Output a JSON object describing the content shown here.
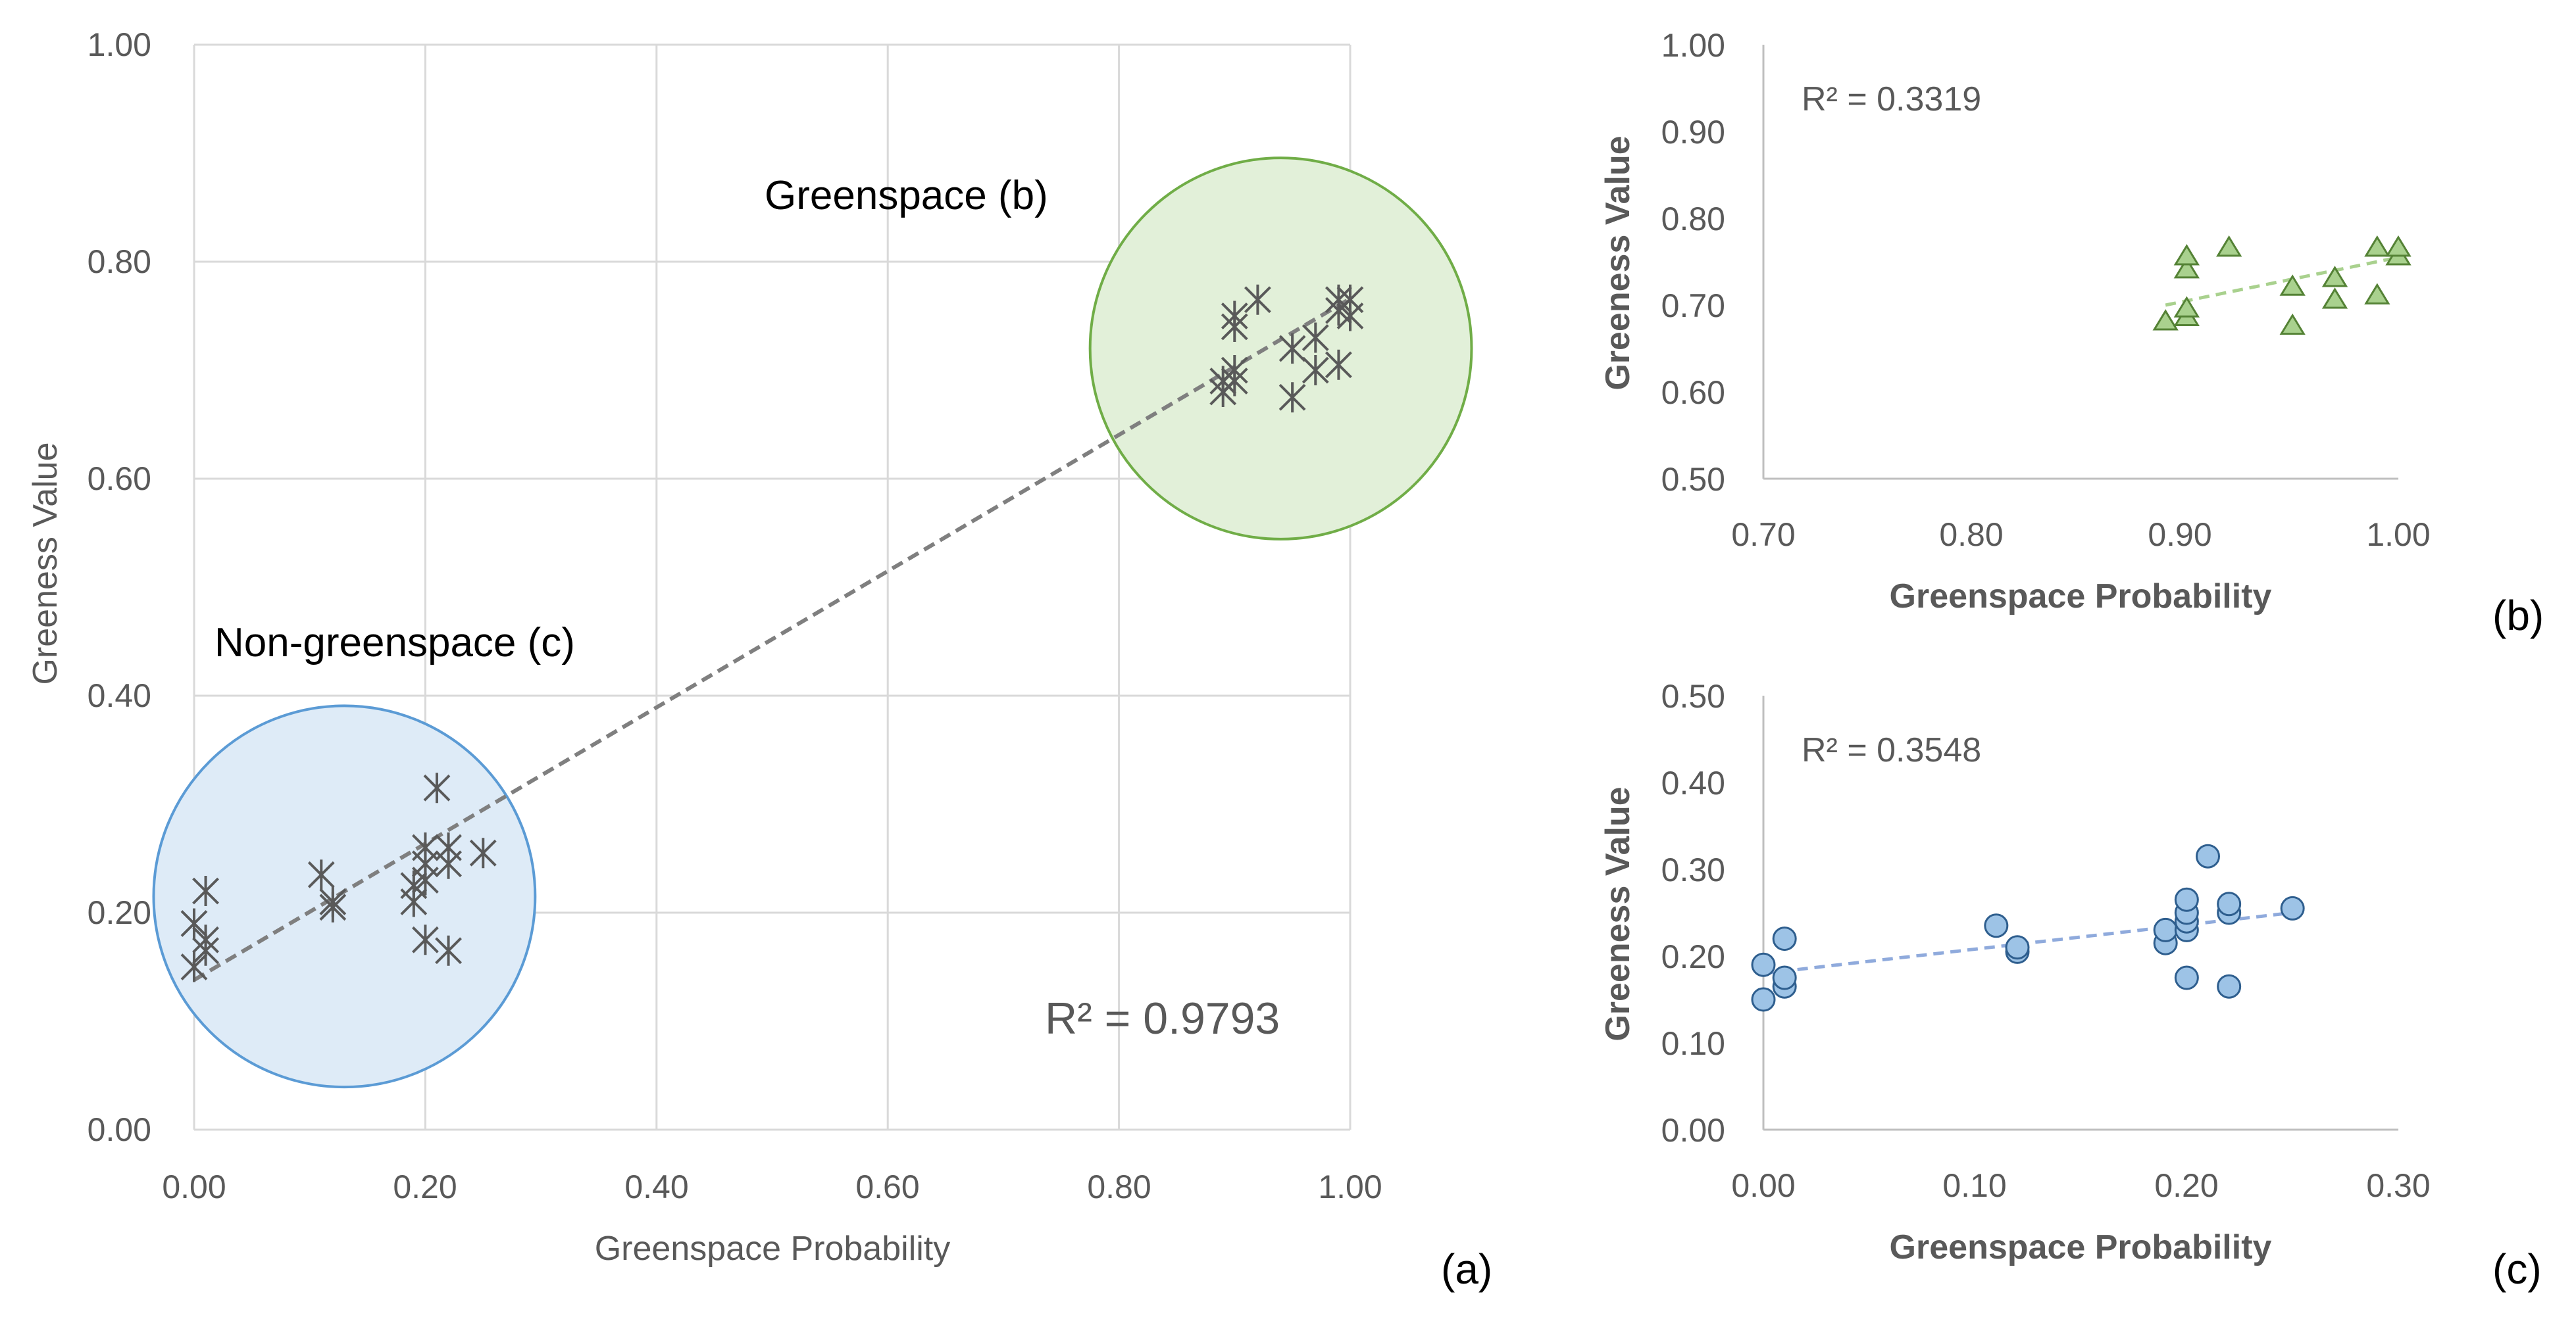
{
  "colors": {
    "marker": "#595959",
    "green_fill": "#a9d18e",
    "green_stroke": "#548235",
    "green_circle_fill": "#e2f0d9",
    "green_circle_stroke": "#70ad47",
    "blue_fill": "#9dc3e6",
    "blue_stroke": "#2e5e8e",
    "blue_circle_fill": "#deebf7",
    "blue_circle_stroke": "#5b9bd5",
    "trend_a": "#7f7f7f",
    "trend_b": "#a9d18e",
    "trend_c": "#8faadc"
  },
  "chart_data": [
    {
      "id": "a",
      "type": "scatter",
      "panel_label": "(a)",
      "xlabel": "Greenspace Probability",
      "ylabel": "Greeness Value",
      "xlim": [
        0,
        1
      ],
      "ylim": [
        0,
        1
      ],
      "xticks": [
        "0.00",
        "0.20",
        "0.40",
        "0.60",
        "0.80",
        "1.00"
      ],
      "yticks": [
        "0.00",
        "0.20",
        "0.40",
        "0.60",
        "0.80",
        "1.00"
      ],
      "grid": true,
      "marker": "star",
      "r2": "R² = 0.9793",
      "trendline": {
        "slope": 0.628,
        "intercept": 0.138
      },
      "annotations": {
        "greenspace": "Greenspace (b)",
        "nongreenspace": "Non-greenspace (c)"
      },
      "highlight_regions": [
        {
          "name": "greenspace-region",
          "cx": 0.94,
          "cy": 0.72,
          "r": 0.165
        },
        {
          "name": "nongreenspace-region",
          "cx": 0.13,
          "cy": 0.215,
          "r": 0.165
        }
      ],
      "points": [
        [
          0.89,
          0.68
        ],
        [
          0.89,
          0.69
        ],
        [
          0.9,
          0.69
        ],
        [
          0.9,
          0.7
        ],
        [
          0.9,
          0.74
        ],
        [
          0.9,
          0.75
        ],
        [
          0.92,
          0.765
        ],
        [
          0.95,
          0.72
        ],
        [
          0.95,
          0.675
        ],
        [
          0.97,
          0.7
        ],
        [
          0.97,
          0.73
        ],
        [
          0.99,
          0.705
        ],
        [
          0.99,
          0.765
        ],
        [
          0.99,
          0.755
        ],
        [
          1.0,
          0.75
        ],
        [
          1.0,
          0.765
        ],
        [
          0.0,
          0.15
        ],
        [
          0.0,
          0.19
        ],
        [
          0.01,
          0.165
        ],
        [
          0.01,
          0.175
        ],
        [
          0.01,
          0.22
        ],
        [
          0.11,
          0.235
        ],
        [
          0.12,
          0.205
        ],
        [
          0.12,
          0.21
        ],
        [
          0.19,
          0.21
        ],
        [
          0.19,
          0.225
        ],
        [
          0.2,
          0.175
        ],
        [
          0.2,
          0.23
        ],
        [
          0.2,
          0.245
        ],
        [
          0.2,
          0.26
        ],
        [
          0.21,
          0.315
        ],
        [
          0.22,
          0.165
        ],
        [
          0.22,
          0.245
        ],
        [
          0.22,
          0.26
        ],
        [
          0.25,
          0.255
        ]
      ]
    },
    {
      "id": "b",
      "type": "scatter",
      "panel_label": "(b)",
      "xlabel": "Greenspace Probability",
      "ylabel": "Greeness Value",
      "xlim": [
        0.7,
        1.0
      ],
      "ylim": [
        0.5,
        1.0
      ],
      "xticks": [
        "0.70",
        "0.80",
        "0.90",
        "1.00"
      ],
      "yticks": [
        "0.50",
        "0.60",
        "0.70",
        "0.80",
        "0.90",
        "1.00"
      ],
      "grid": false,
      "marker": "triangle",
      "r2": "R² = 0.3319",
      "trendline": {
        "x0": 0.89,
        "y0": 0.7,
        "x1": 1.0,
        "y1": 0.755
      },
      "points": [
        [
          0.89,
          0.68
        ],
        [
          0.9,
          0.685
        ],
        [
          0.9,
          0.695
        ],
        [
          0.9,
          0.74
        ],
        [
          0.9,
          0.755
        ],
        [
          0.92,
          0.765
        ],
        [
          0.95,
          0.72
        ],
        [
          0.95,
          0.675
        ],
        [
          0.97,
          0.705
        ],
        [
          0.97,
          0.73
        ],
        [
          0.99,
          0.71
        ],
        [
          0.99,
          0.765
        ],
        [
          1.0,
          0.755
        ],
        [
          1.0,
          0.765
        ]
      ]
    },
    {
      "id": "c",
      "type": "scatter",
      "panel_label": "(c)",
      "xlabel": "Greenspace Probability",
      "ylabel": "Greeness Value",
      "xlim": [
        0,
        0.3
      ],
      "ylim": [
        0,
        0.5
      ],
      "xticks": [
        "0.00",
        "0.10",
        "0.20",
        "0.30"
      ],
      "yticks": [
        "0.00",
        "0.10",
        "0.20",
        "0.30",
        "0.40",
        "0.50"
      ],
      "grid": false,
      "marker": "circle",
      "r2": "R² = 0.3548",
      "trendline": {
        "x0": 0.0,
        "y0": 0.18,
        "x1": 0.25,
        "y1": 0.25
      },
      "points": [
        [
          0.0,
          0.15
        ],
        [
          0.0,
          0.19
        ],
        [
          0.01,
          0.165
        ],
        [
          0.01,
          0.175
        ],
        [
          0.01,
          0.22
        ],
        [
          0.11,
          0.235
        ],
        [
          0.12,
          0.205
        ],
        [
          0.12,
          0.21
        ],
        [
          0.19,
          0.215
        ],
        [
          0.19,
          0.23
        ],
        [
          0.2,
          0.175
        ],
        [
          0.2,
          0.23
        ],
        [
          0.2,
          0.24
        ],
        [
          0.2,
          0.25
        ],
        [
          0.2,
          0.265
        ],
        [
          0.21,
          0.315
        ],
        [
          0.22,
          0.165
        ],
        [
          0.22,
          0.25
        ],
        [
          0.22,
          0.26
        ],
        [
          0.25,
          0.255
        ]
      ]
    }
  ]
}
